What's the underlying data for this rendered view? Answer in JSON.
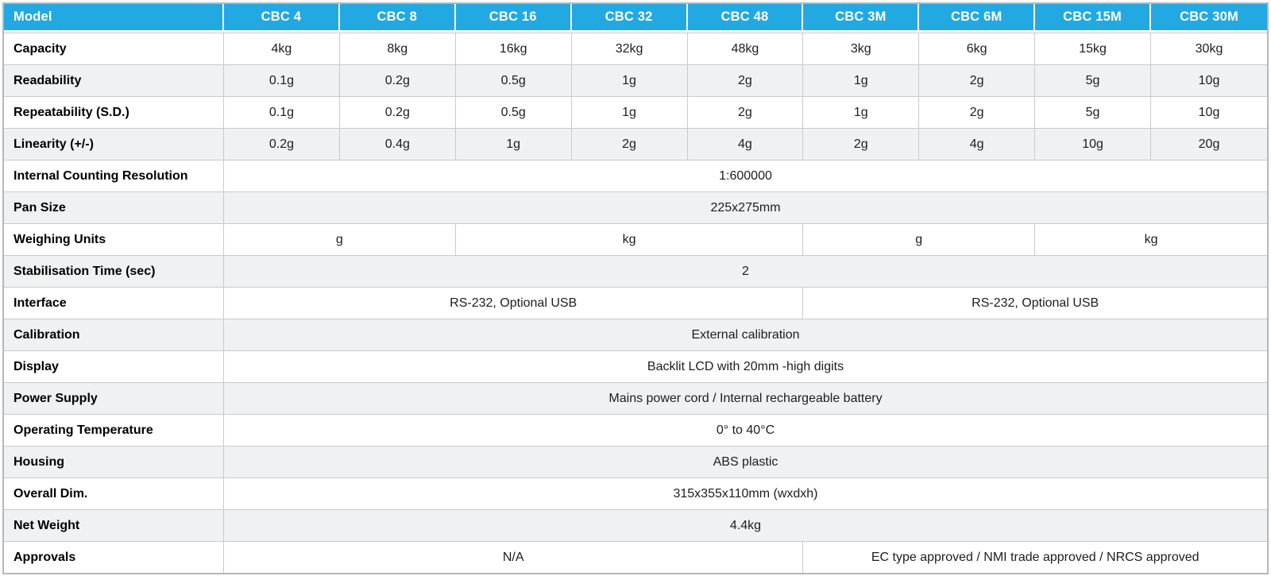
{
  "colors": {
    "header_bg": "#22a9e2",
    "header_text": "#ffffff",
    "stripe_bg": "#eff1f3",
    "row_bg": "#ffffff",
    "cell_border": "#c8cacc",
    "outer_border": "#b5b7b9",
    "body_text": "#1d1d1f"
  },
  "table": {
    "header": {
      "label": "Model",
      "columns": [
        "CBC 4",
        "CBC 8",
        "CBC 16",
        "CBC 32",
        "CBC 48",
        "CBC 3M",
        "CBC 6M",
        "CBC 15M",
        "CBC 30M"
      ]
    },
    "rows": [
      {
        "label": "Capacity",
        "cells": [
          {
            "text": "4kg",
            "span": 1
          },
          {
            "text": "8kg",
            "span": 1
          },
          {
            "text": "16kg",
            "span": 1
          },
          {
            "text": "32kg",
            "span": 1
          },
          {
            "text": "48kg",
            "span": 1
          },
          {
            "text": "3kg",
            "span": 1
          },
          {
            "text": "6kg",
            "span": 1
          },
          {
            "text": "15kg",
            "span": 1
          },
          {
            "text": "30kg",
            "span": 1
          }
        ]
      },
      {
        "label": "Readability",
        "cells": [
          {
            "text": "0.1g",
            "span": 1
          },
          {
            "text": "0.2g",
            "span": 1
          },
          {
            "text": "0.5g",
            "span": 1
          },
          {
            "text": "1g",
            "span": 1
          },
          {
            "text": "2g",
            "span": 1
          },
          {
            "text": "1g",
            "span": 1
          },
          {
            "text": "2g",
            "span": 1
          },
          {
            "text": "5g",
            "span": 1
          },
          {
            "text": "10g",
            "span": 1
          }
        ]
      },
      {
        "label": "Repeatability (S.D.)",
        "cells": [
          {
            "text": "0.1g",
            "span": 1
          },
          {
            "text": "0.2g",
            "span": 1
          },
          {
            "text": "0.5g",
            "span": 1
          },
          {
            "text": "1g",
            "span": 1
          },
          {
            "text": "2g",
            "span": 1
          },
          {
            "text": "1g",
            "span": 1
          },
          {
            "text": "2g",
            "span": 1
          },
          {
            "text": "5g",
            "span": 1
          },
          {
            "text": "10g",
            "span": 1
          }
        ]
      },
      {
        "label": "Linearity (+/-)",
        "cells": [
          {
            "text": "0.2g",
            "span": 1
          },
          {
            "text": "0.4g",
            "span": 1
          },
          {
            "text": "1g",
            "span": 1
          },
          {
            "text": "2g",
            "span": 1
          },
          {
            "text": "4g",
            "span": 1
          },
          {
            "text": "2g",
            "span": 1
          },
          {
            "text": "4g",
            "span": 1
          },
          {
            "text": "10g",
            "span": 1
          },
          {
            "text": "20g",
            "span": 1
          }
        ]
      },
      {
        "label": "Internal Counting Resolution",
        "cells": [
          {
            "text": "1:600000",
            "span": 9
          }
        ]
      },
      {
        "label": "Pan Size",
        "cells": [
          {
            "text": "225x275mm",
            "span": 9
          }
        ]
      },
      {
        "label": "Weighing Units",
        "cells": [
          {
            "text": "g",
            "span": 2
          },
          {
            "text": "kg",
            "span": 3
          },
          {
            "text": "g",
            "span": 2
          },
          {
            "text": "kg",
            "span": 2
          }
        ]
      },
      {
        "label": "Stabilisation Time (sec)",
        "cells": [
          {
            "text": "2",
            "span": 9
          }
        ]
      },
      {
        "label": "Interface",
        "cells": [
          {
            "text": "RS-232, Optional USB",
            "span": 5
          },
          {
            "text": "RS-232, Optional USB",
            "span": 4
          }
        ]
      },
      {
        "label": "Calibration",
        "cells": [
          {
            "text": "External calibration",
            "span": 9
          }
        ]
      },
      {
        "label": "Display",
        "cells": [
          {
            "text": "Backlit LCD with 20mm -high digits",
            "span": 9
          }
        ]
      },
      {
        "label": "Power Supply",
        "cells": [
          {
            "text": "Mains power cord / Internal rechargeable battery",
            "span": 9
          }
        ]
      },
      {
        "label": "Operating Temperature",
        "cells": [
          {
            "text": "0° to 40°C",
            "span": 9
          }
        ]
      },
      {
        "label": "Housing",
        "cells": [
          {
            "text": "ABS plastic",
            "span": 9
          }
        ]
      },
      {
        "label": "Overall Dim.",
        "cells": [
          {
            "text": "315x355x110mm (wxdxh)",
            "span": 9
          }
        ]
      },
      {
        "label": "Net Weight",
        "cells": [
          {
            "text": "4.4kg",
            "span": 9
          }
        ]
      },
      {
        "label": "Approvals",
        "cells": [
          {
            "text": "N/A",
            "span": 5
          },
          {
            "text": "EC type approved / NMI trade approved / NRCS approved",
            "span": 4
          }
        ]
      }
    ]
  }
}
